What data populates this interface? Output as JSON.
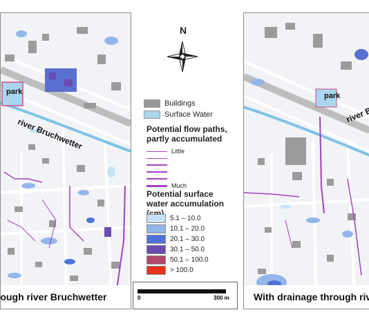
{
  "maps": {
    "left": {
      "caption": "rough river Bruchwetter",
      "park_label": "park",
      "river_label": "river Bruchwetter"
    },
    "right": {
      "caption": "With drainage through rive",
      "park_label": "park",
      "river_label": "river Bruchwe"
    }
  },
  "north_arrow": {
    "letter": "N"
  },
  "legend": {
    "buildings": {
      "label": "Buildings",
      "color": "#9a9a9a"
    },
    "surface_water": {
      "label": "Surface Water",
      "color": "#a9d6ee"
    },
    "flow_title": "Potential flow paths, partly accumulated",
    "flow_levels": [
      {
        "label": "Little",
        "weight": 1
      },
      {
        "label": "",
        "weight": 1.5
      },
      {
        "label": "",
        "weight": 2
      },
      {
        "label": "",
        "weight": 2.5
      },
      {
        "label": "",
        "weight": 3
      },
      {
        "label": "Much",
        "weight": 3.5
      }
    ],
    "accum_title": "Potential surface water accumulation (cm)",
    "accum_classes": [
      {
        "label": "5.1 – 10.0",
        "color": "#c9e3f6"
      },
      {
        "label": "10.1 – 20.0",
        "color": "#93b6ea"
      },
      {
        "label": "20.1 – 30.0",
        "color": "#4f73d8"
      },
      {
        "label": "30.1 – 50.0",
        "color": "#6a4cb0"
      },
      {
        "label": "50.1 – 100.0",
        "color": "#b2486b"
      },
      {
        "label": "> 100.0",
        "color": "#e8321e"
      }
    ]
  },
  "scale": {
    "start": "0",
    "end": "300 m"
  }
}
